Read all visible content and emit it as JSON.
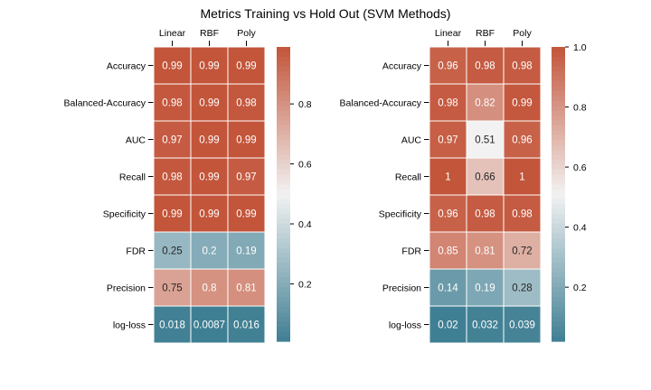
{
  "title": "Metrics Training vs Hold Out (SVM Methods)",
  "chart_data": [
    {
      "type": "heatmap",
      "columns": [
        "Linear",
        "RBF",
        "Poly"
      ],
      "rows": [
        "Accuracy",
        "Balanced-Accuracy",
        "AUC",
        "Recall",
        "Specificity",
        "FDR",
        "Precision",
        "log-loss"
      ],
      "values": [
        [
          0.99,
          0.99,
          0.99
        ],
        [
          0.98,
          0.99,
          0.98
        ],
        [
          0.97,
          0.99,
          0.99
        ],
        [
          0.98,
          0.99,
          0.97
        ],
        [
          0.99,
          0.99,
          0.99
        ],
        [
          0.25,
          0.2,
          0.19
        ],
        [
          0.75,
          0.8,
          0.81
        ],
        [
          0.018,
          0.0087,
          0.016
        ]
      ],
      "labels": [
        [
          "0.99",
          "0.99",
          "0.99"
        ],
        [
          "0.98",
          "0.99",
          "0.98"
        ],
        [
          "0.97",
          "0.99",
          "0.99"
        ],
        [
          "0.98",
          "0.99",
          "0.97"
        ],
        [
          "0.99",
          "0.99",
          "0.99"
        ],
        [
          "0.25",
          "0.2",
          "0.19"
        ],
        [
          "0.75",
          "0.8",
          "0.81"
        ],
        [
          "0.018",
          "0.0087",
          "0.016"
        ]
      ],
      "colorbar": {
        "vmin": 0.0087,
        "vmax": 0.99,
        "ticks": [
          "0.2",
          "0.4",
          "0.6",
          "0.8"
        ]
      }
    },
    {
      "type": "heatmap",
      "columns": [
        "Linear",
        "RBF",
        "Poly"
      ],
      "rows": [
        "Accuracy",
        "Balanced-Accuracy",
        "AUC",
        "Recall",
        "Specificity",
        "FDR",
        "Precision",
        "log-loss"
      ],
      "values": [
        [
          0.96,
          0.98,
          0.98
        ],
        [
          0.98,
          0.82,
          0.99
        ],
        [
          0.97,
          0.51,
          0.96
        ],
        [
          1,
          0.66,
          1
        ],
        [
          0.96,
          0.98,
          0.98
        ],
        [
          0.85,
          0.81,
          0.72
        ],
        [
          0.14,
          0.19,
          0.28
        ],
        [
          0.02,
          0.032,
          0.039
        ]
      ],
      "labels": [
        [
          "0.96",
          "0.98",
          "0.98"
        ],
        [
          "0.98",
          "0.82",
          "0.99"
        ],
        [
          "0.97",
          "0.51",
          "0.96"
        ],
        [
          "1",
          "0.66",
          "1"
        ],
        [
          "0.96",
          "0.98",
          "0.98"
        ],
        [
          "0.85",
          "0.81",
          "0.72"
        ],
        [
          "0.14",
          "0.19",
          "0.28"
        ],
        [
          "0.02",
          "0.032",
          "0.039"
        ]
      ],
      "colorbar": {
        "vmin": 0.02,
        "vmax": 1.0,
        "ticks": [
          "0.2",
          "0.4",
          "0.6",
          "0.8",
          "1.0"
        ]
      }
    }
  ],
  "colors": {
    "low": "#3f7f93",
    "mid": "#f2f2f2",
    "high": "#c3553a",
    "grid_line": "#ffffff"
  }
}
